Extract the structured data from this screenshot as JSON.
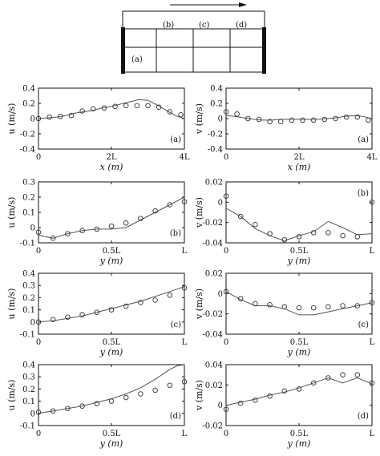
{
  "schematic": {
    "section_labels": [
      "(a)",
      "(b)",
      "(c)",
      "(d)"
    ]
  },
  "chart_data": [
    {
      "type": "line",
      "panel_label": "(a)",
      "xlabel": "x (m)",
      "ylabel": "u (m/s)",
      "xlim": [
        0,
        4
      ],
      "ylim": [
        -0.4,
        0.4
      ],
      "x_ticks": [
        0,
        2,
        4
      ],
      "x_tick_labels": [
        "0",
        "2L",
        "4L"
      ],
      "y_ticks": [
        -0.4,
        -0.2,
        0,
        0.2,
        0.4
      ],
      "y_tick_labels": [
        "-0.4",
        "-0.2",
        "0",
        "0.2",
        "0.4"
      ],
      "series": [
        {
          "style": "line",
          "x": [
            0,
            0.25,
            0.5,
            0.75,
            1.0,
            1.25,
            1.5,
            1.75,
            2.0,
            2.25,
            2.5,
            2.75,
            3.0,
            3.25,
            3.5,
            3.75,
            4.0
          ],
          "y": [
            0.0,
            0.01,
            0.02,
            0.04,
            0.07,
            0.09,
            0.11,
            0.14,
            0.16,
            0.19,
            0.22,
            0.25,
            0.24,
            0.18,
            0.11,
            0.04,
            0.0
          ]
        },
        {
          "style": "marker",
          "x": [
            0,
            0.3,
            0.6,
            0.9,
            1.2,
            1.5,
            1.8,
            2.1,
            2.4,
            2.7,
            3.0,
            3.3,
            3.6,
            3.9
          ],
          "y": [
            0.0,
            0.02,
            0.03,
            0.04,
            0.1,
            0.13,
            0.14,
            0.16,
            0.17,
            0.17,
            0.17,
            0.15,
            0.09,
            0.05
          ]
        }
      ]
    },
    {
      "type": "line",
      "panel_label": "(a)",
      "xlabel": "x (m)",
      "ylabel": "v (m/s)",
      "xlim": [
        0,
        4
      ],
      "ylim": [
        -0.4,
        0.4
      ],
      "x_ticks": [
        0,
        2,
        4
      ],
      "x_tick_labels": [
        "0",
        "2L",
        "4L"
      ],
      "y_ticks": [
        -0.4,
        -0.2,
        0,
        0.2,
        0.4
      ],
      "y_tick_labels": [
        "-0.4",
        "-0.2",
        "0",
        "0.2",
        "0.4"
      ],
      "series": [
        {
          "style": "line",
          "x": [
            0,
            0.25,
            0.5,
            0.75,
            1.0,
            1.25,
            1.5,
            1.75,
            2.0,
            2.25,
            2.5,
            2.75,
            3.0,
            3.25,
            3.5,
            3.75,
            4.0
          ],
          "y": [
            0.04,
            0.03,
            0.01,
            -0.01,
            -0.02,
            -0.02,
            -0.01,
            -0.01,
            -0.01,
            -0.01,
            -0.01,
            0.0,
            0.01,
            0.03,
            0.04,
            0.03,
            0.0
          ]
        },
        {
          "style": "marker",
          "x": [
            0,
            0.3,
            0.6,
            0.9,
            1.2,
            1.5,
            1.8,
            2.1,
            2.4,
            2.7,
            3.0,
            3.3,
            3.6,
            3.9
          ],
          "y": [
            0.09,
            0.06,
            0.0,
            -0.01,
            -0.04,
            -0.04,
            -0.02,
            -0.02,
            -0.02,
            -0.01,
            0.0,
            0.02,
            0.02,
            -0.02
          ]
        }
      ]
    },
    {
      "type": "line",
      "panel_label": "(b)",
      "xlabel": "y (m)",
      "ylabel": "u (m/s)",
      "xlim": [
        0,
        1
      ],
      "ylim": [
        -0.1,
        0.3
      ],
      "x_ticks": [
        0,
        0.5,
        1
      ],
      "x_tick_labels": [
        "0",
        "0.5L",
        "L"
      ],
      "y_ticks": [
        -0.1,
        0,
        0.1,
        0.2,
        0.3
      ],
      "y_tick_labels": [
        "-0.1",
        "0",
        "0.1",
        "0.2",
        "0.3"
      ],
      "series": [
        {
          "style": "line",
          "x": [
            0,
            0.1,
            0.2,
            0.3,
            0.4,
            0.5,
            0.6,
            0.7,
            0.8,
            0.9,
            1.0
          ],
          "y": [
            -0.05,
            -0.07,
            -0.04,
            -0.02,
            -0.01,
            -0.01,
            0.0,
            0.05,
            0.1,
            0.15,
            0.2
          ]
        },
        {
          "style": "marker",
          "x": [
            0,
            0.1,
            0.2,
            0.3,
            0.4,
            0.5,
            0.6,
            0.7,
            0.8,
            0.9,
            1.0
          ],
          "y": [
            -0.03,
            -0.07,
            -0.04,
            -0.02,
            -0.01,
            0.01,
            0.03,
            0.06,
            0.11,
            0.15,
            0.17
          ]
        }
      ]
    },
    {
      "type": "line",
      "panel_label": "(b)",
      "xlabel": "y (m)",
      "ylabel": "v (m/s)",
      "xlim": [
        0,
        1
      ],
      "ylim": [
        -0.04,
        0.02
      ],
      "x_ticks": [
        0,
        0.5,
        1
      ],
      "x_tick_labels": [
        "0",
        "0.5L",
        "L"
      ],
      "y_ticks": [
        -0.04,
        -0.02,
        0,
        0.02
      ],
      "y_tick_labels": [
        "-0.04",
        "-0.02",
        "0",
        "0.02"
      ],
      "series": [
        {
          "style": "line",
          "x": [
            0,
            0.1,
            0.2,
            0.3,
            0.4,
            0.5,
            0.6,
            0.7,
            0.8,
            0.9,
            1.0
          ],
          "y": [
            -0.006,
            -0.014,
            -0.026,
            -0.033,
            -0.038,
            -0.033,
            -0.029,
            -0.019,
            -0.025,
            -0.032,
            -0.031
          ]
        },
        {
          "style": "marker",
          "x": [
            0,
            0.1,
            0.2,
            0.3,
            0.4,
            0.5,
            0.6,
            0.7,
            0.8,
            0.9,
            1.0
          ],
          "y": [
            0.006,
            -0.014,
            -0.022,
            -0.031,
            -0.037,
            -0.034,
            -0.03,
            -0.03,
            -0.033,
            -0.034,
            0.0
          ]
        }
      ]
    },
    {
      "type": "line",
      "panel_label": "(c)",
      "xlabel": "y (m)",
      "ylabel": "u (m/s)",
      "xlim": [
        0,
        1
      ],
      "ylim": [
        -0.1,
        0.4
      ],
      "x_ticks": [
        0,
        0.5,
        1
      ],
      "x_tick_labels": [
        "0",
        "0.5L",
        "L"
      ],
      "y_ticks": [
        -0.1,
        0,
        0.1,
        0.2,
        0.3,
        0.4
      ],
      "y_tick_labels": [
        "-0.1",
        "0",
        "0.1",
        "0.2",
        "0.3",
        "0.4"
      ],
      "series": [
        {
          "style": "line",
          "x": [
            0,
            0.1,
            0.2,
            0.3,
            0.4,
            0.5,
            0.6,
            0.7,
            0.8,
            0.9,
            1.0
          ],
          "y": [
            0.0,
            0.01,
            0.03,
            0.05,
            0.08,
            0.11,
            0.14,
            0.17,
            0.21,
            0.25,
            0.29
          ]
        },
        {
          "style": "marker",
          "x": [
            0,
            0.1,
            0.2,
            0.3,
            0.4,
            0.5,
            0.6,
            0.7,
            0.8,
            0.9,
            1.0
          ],
          "y": [
            0.0,
            0.02,
            0.04,
            0.06,
            0.08,
            0.1,
            0.13,
            0.16,
            0.18,
            0.22,
            0.28
          ]
        }
      ]
    },
    {
      "type": "line",
      "panel_label": "(c)",
      "xlabel": "y (m)",
      "ylabel": "v (m/s)",
      "xlim": [
        0,
        1
      ],
      "ylim": [
        -0.04,
        0.02
      ],
      "x_ticks": [
        0,
        0.5,
        1
      ],
      "x_tick_labels": [
        "0",
        "0.5L",
        "L"
      ],
      "y_ticks": [
        -0.04,
        -0.02,
        0,
        0.02
      ],
      "y_tick_labels": [
        "-0.04",
        "-0.02",
        "0",
        "0.02"
      ],
      "series": [
        {
          "style": "line",
          "x": [
            0,
            0.1,
            0.2,
            0.3,
            0.4,
            0.5,
            0.6,
            0.7,
            0.8,
            0.9,
            1.0
          ],
          "y": [
            0.002,
            -0.006,
            -0.012,
            -0.012,
            -0.015,
            -0.021,
            -0.021,
            -0.018,
            -0.015,
            -0.012,
            -0.009
          ]
        },
        {
          "style": "marker",
          "x": [
            0,
            0.1,
            0.2,
            0.3,
            0.4,
            0.5,
            0.6,
            0.7,
            0.8,
            0.9,
            1.0
          ],
          "y": [
            0.002,
            -0.005,
            -0.01,
            -0.011,
            -0.013,
            -0.014,
            -0.014,
            -0.013,
            -0.012,
            -0.012,
            -0.009
          ]
        }
      ]
    },
    {
      "type": "line",
      "panel_label": "(d)",
      "xlabel": "y (m)",
      "ylabel": "u (m/s)",
      "xlim": [
        0,
        1
      ],
      "ylim": [
        -0.1,
        0.4
      ],
      "x_ticks": [
        0,
        0.5,
        1
      ],
      "x_tick_labels": [
        "0",
        "0.5L",
        "L"
      ],
      "y_ticks": [
        -0.1,
        0,
        0.1,
        0.2,
        0.3,
        0.4
      ],
      "y_tick_labels": [
        "-0.1",
        "0",
        "0.1",
        "0.2",
        "0.3",
        "0.4"
      ],
      "series": [
        {
          "style": "line",
          "x": [
            0,
            0.1,
            0.2,
            0.3,
            0.4,
            0.5,
            0.6,
            0.7,
            0.8,
            0.9,
            0.95,
            1.0
          ],
          "y": [
            0.0,
            0.02,
            0.04,
            0.06,
            0.09,
            0.12,
            0.16,
            0.21,
            0.28,
            0.36,
            0.39,
            0.4
          ]
        },
        {
          "style": "marker",
          "x": [
            0,
            0.1,
            0.2,
            0.3,
            0.4,
            0.5,
            0.6,
            0.7,
            0.8,
            0.9,
            1.0
          ],
          "y": [
            0.01,
            0.02,
            0.04,
            0.06,
            0.08,
            0.1,
            0.13,
            0.16,
            0.19,
            0.23,
            0.26
          ]
        }
      ]
    },
    {
      "type": "line",
      "panel_label": "(d)",
      "xlabel": "y (m)",
      "ylabel": "v (m/s)",
      "xlim": [
        0,
        1
      ],
      "ylim": [
        -0.02,
        0.04
      ],
      "x_ticks": [
        0,
        0.5,
        1
      ],
      "x_tick_labels": [
        "0",
        "0.5L",
        "L"
      ],
      "y_ticks": [
        -0.02,
        0,
        0.02,
        0.04
      ],
      "y_tick_labels": [
        "-0.02",
        "0",
        "0.02",
        "0.04"
      ],
      "series": [
        {
          "style": "line",
          "x": [
            0,
            0.1,
            0.2,
            0.3,
            0.4,
            0.5,
            0.6,
            0.7,
            0.8,
            0.9,
            1.0
          ],
          "y": [
            0.0,
            0.003,
            0.006,
            0.01,
            0.013,
            0.017,
            0.022,
            0.027,
            0.022,
            0.027,
            0.021
          ]
        },
        {
          "style": "marker",
          "x": [
            0,
            0.1,
            0.2,
            0.3,
            0.4,
            0.5,
            0.6,
            0.7,
            0.8,
            0.9,
            1.0
          ],
          "y": [
            -0.004,
            0.002,
            0.005,
            0.009,
            0.014,
            0.016,
            0.022,
            0.027,
            0.03,
            0.03,
            0.022
          ]
        }
      ]
    }
  ]
}
